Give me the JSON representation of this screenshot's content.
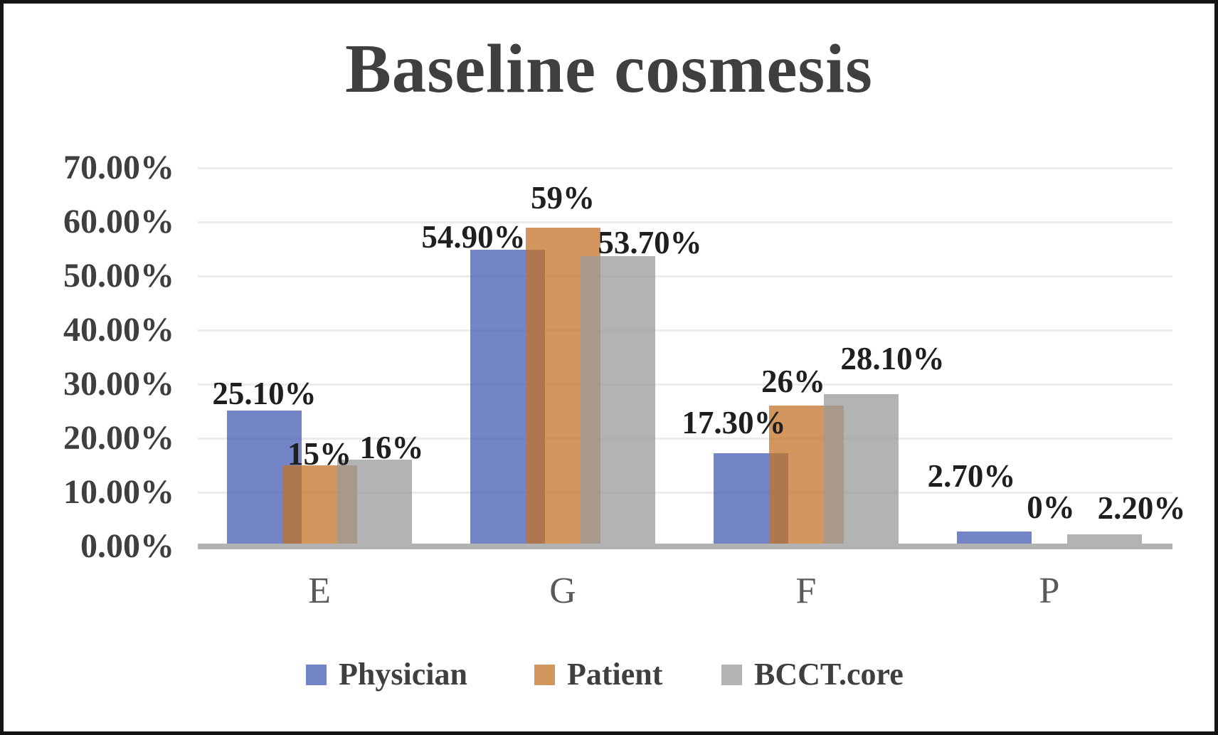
{
  "title": "Baseline cosmesis",
  "chart_data": {
    "type": "bar",
    "title": "Baseline cosmesis",
    "categories": [
      "E",
      "G",
      "F",
      "P"
    ],
    "series": [
      {
        "name": "Physician",
        "color_hex_displayed": "#7484C6",
        "fill": "rgba(68,92,180,0.75)",
        "values": [
          25.1,
          54.9,
          17.3,
          2.7
        ],
        "data_labels": [
          "25.10%",
          "54.90%",
          "17.30%",
          "2.70%"
        ]
      },
      {
        "name": "Patient",
        "color_hex_displayed": "#D2965E",
        "fill": "rgba(195,115,40,0.75)",
        "values": [
          15,
          59,
          26,
          0
        ],
        "data_labels": [
          "15%",
          "59%",
          "26%",
          "0%"
        ]
      },
      {
        "name": "BCCT.core",
        "color_hex_displayed": "#B3B3B3",
        "fill": "rgba(154,154,154,0.75)",
        "values": [
          16,
          53.7,
          28.1,
          2.2
        ],
        "data_labels": [
          "16%",
          "53.70%",
          "28.10%",
          "2.20%"
        ]
      }
    ],
    "y_axis": {
      "min": 0,
      "max": 70,
      "tick_values": [
        70,
        60,
        50,
        40,
        30,
        20,
        10,
        0
      ],
      "tick_labels": [
        "70.00%",
        "60.00%",
        "50.00%",
        "40.00%",
        "30.00%",
        "20.00%",
        "10.00%",
        "0.00%"
      ]
    },
    "grid": true,
    "legend_position": "bottom",
    "axis_line_color": "#B3B3B3",
    "gridline_color": "#ECECEC",
    "title_color": "#3F3F3F",
    "data_label_color": "#1F1F1F",
    "category_label_color": "#595959"
  }
}
